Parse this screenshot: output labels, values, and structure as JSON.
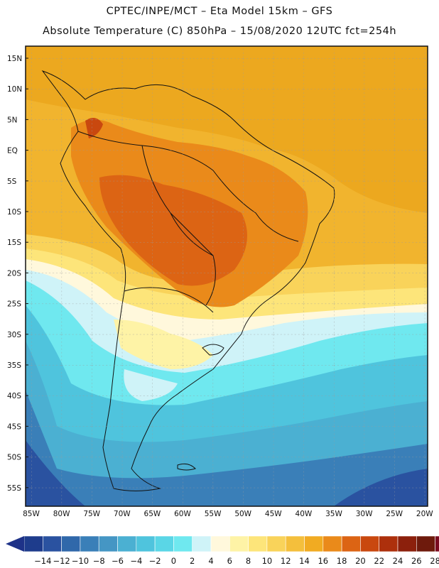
{
  "header": {
    "line1": "CPTEC/INPE/MCT –  Eta Model 15km – GFS",
    "line2": "Absolute Temperature (C) 850hPa – 15/08/2020 12UTC fct=254h"
  },
  "map": {
    "lat_labels": [
      "15N",
      "10N",
      "5N",
      "EQ",
      "5S",
      "10S",
      "15S",
      "20S",
      "25S",
      "30S",
      "35S",
      "40S",
      "45S",
      "50S",
      "55S"
    ],
    "lon_labels": [
      "85W",
      "80W",
      "75W",
      "70W",
      "65W",
      "60W",
      "55W",
      "50W",
      "45W",
      "40W",
      "35W",
      "30W",
      "25W",
      "20W"
    ]
  },
  "colorbar": {
    "ticks": [
      "-14",
      "-12",
      "-10",
      "-8",
      "-6",
      "-4",
      "-2",
      "0",
      "2",
      "4",
      "6",
      "8",
      "10",
      "12",
      "14",
      "16",
      "18",
      "20",
      "22",
      "24",
      "26",
      "28"
    ],
    "colors": [
      "#1e3c8c",
      "#2a52a0",
      "#3068aa",
      "#3a7fb8",
      "#4596c4",
      "#4bb0d2",
      "#4fc4dd",
      "#5ad6e6",
      "#6fe8ef",
      "#cff3f8",
      "#fff8dc",
      "#fef3a6",
      "#fde57a",
      "#f9d35a",
      "#f4bf3c",
      "#f1ab22",
      "#ea8a1a",
      "#dc6414",
      "#c9480f",
      "#ad300c",
      "#8c200c",
      "#6e1a0c",
      "#7a0a20"
    ]
  }
}
